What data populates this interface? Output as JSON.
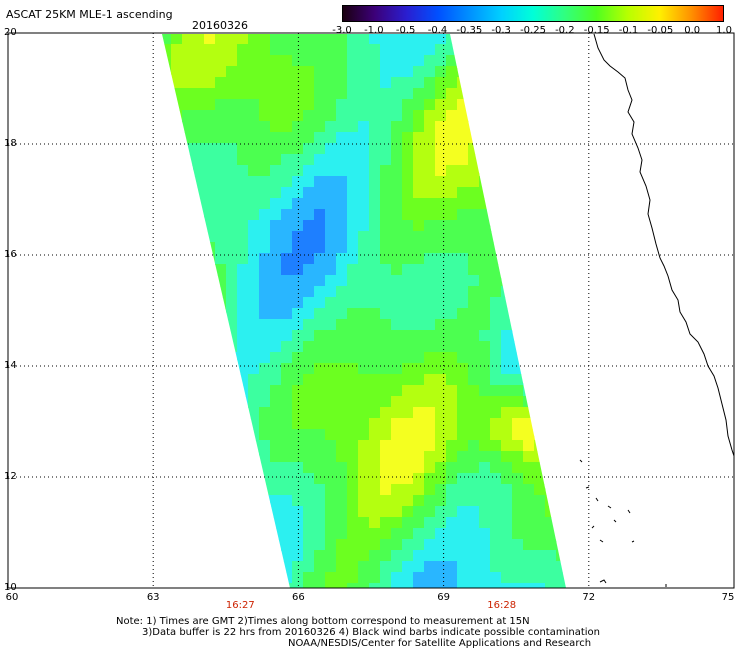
{
  "header": {
    "title": "ASCAT 25KM MLE-1 ascending",
    "date": "20160326"
  },
  "colorbar": {
    "labels": [
      "-3.0",
      "-1.0",
      "-0.5",
      "-0.4",
      "-0.35",
      "-0.3",
      "-0.25",
      "-0.2",
      "-0.15",
      "-0.1",
      "-0.05",
      "0.0",
      "1.0"
    ],
    "colors": [
      "#1a0010",
      "#3c0078",
      "#2a1ed0",
      "#0050ff",
      "#0090ff",
      "#00d0ff",
      "#00ffd8",
      "#30ff80",
      "#50ff20",
      "#b8ff00",
      "#fff000",
      "#ff9000",
      "#ff2000"
    ]
  },
  "map": {
    "lat_labels": [
      "20",
      "18",
      "16",
      "14",
      "12",
      "10"
    ],
    "lon_labels": [
      "60",
      "63",
      "66",
      "69",
      "72",
      "75"
    ],
    "lat_range": [
      10,
      20
    ],
    "lon_range": [
      60,
      75
    ],
    "pass_times": [
      {
        "label": "16:27",
        "lon": 64.8
      },
      {
        "label": "16:28",
        "lon": 70.2
      }
    ]
  },
  "notes": {
    "line1": "Note: 1) Times are GMT 2)Times along bottom correspond to measurement at 15N",
    "line2": "3)Data buffer is 22 hrs from 20160326 4) Black wind barbs indicate possible contamination",
    "line3": "NOAA/NESDIS/Center for Satellite Applications and Research"
  }
}
